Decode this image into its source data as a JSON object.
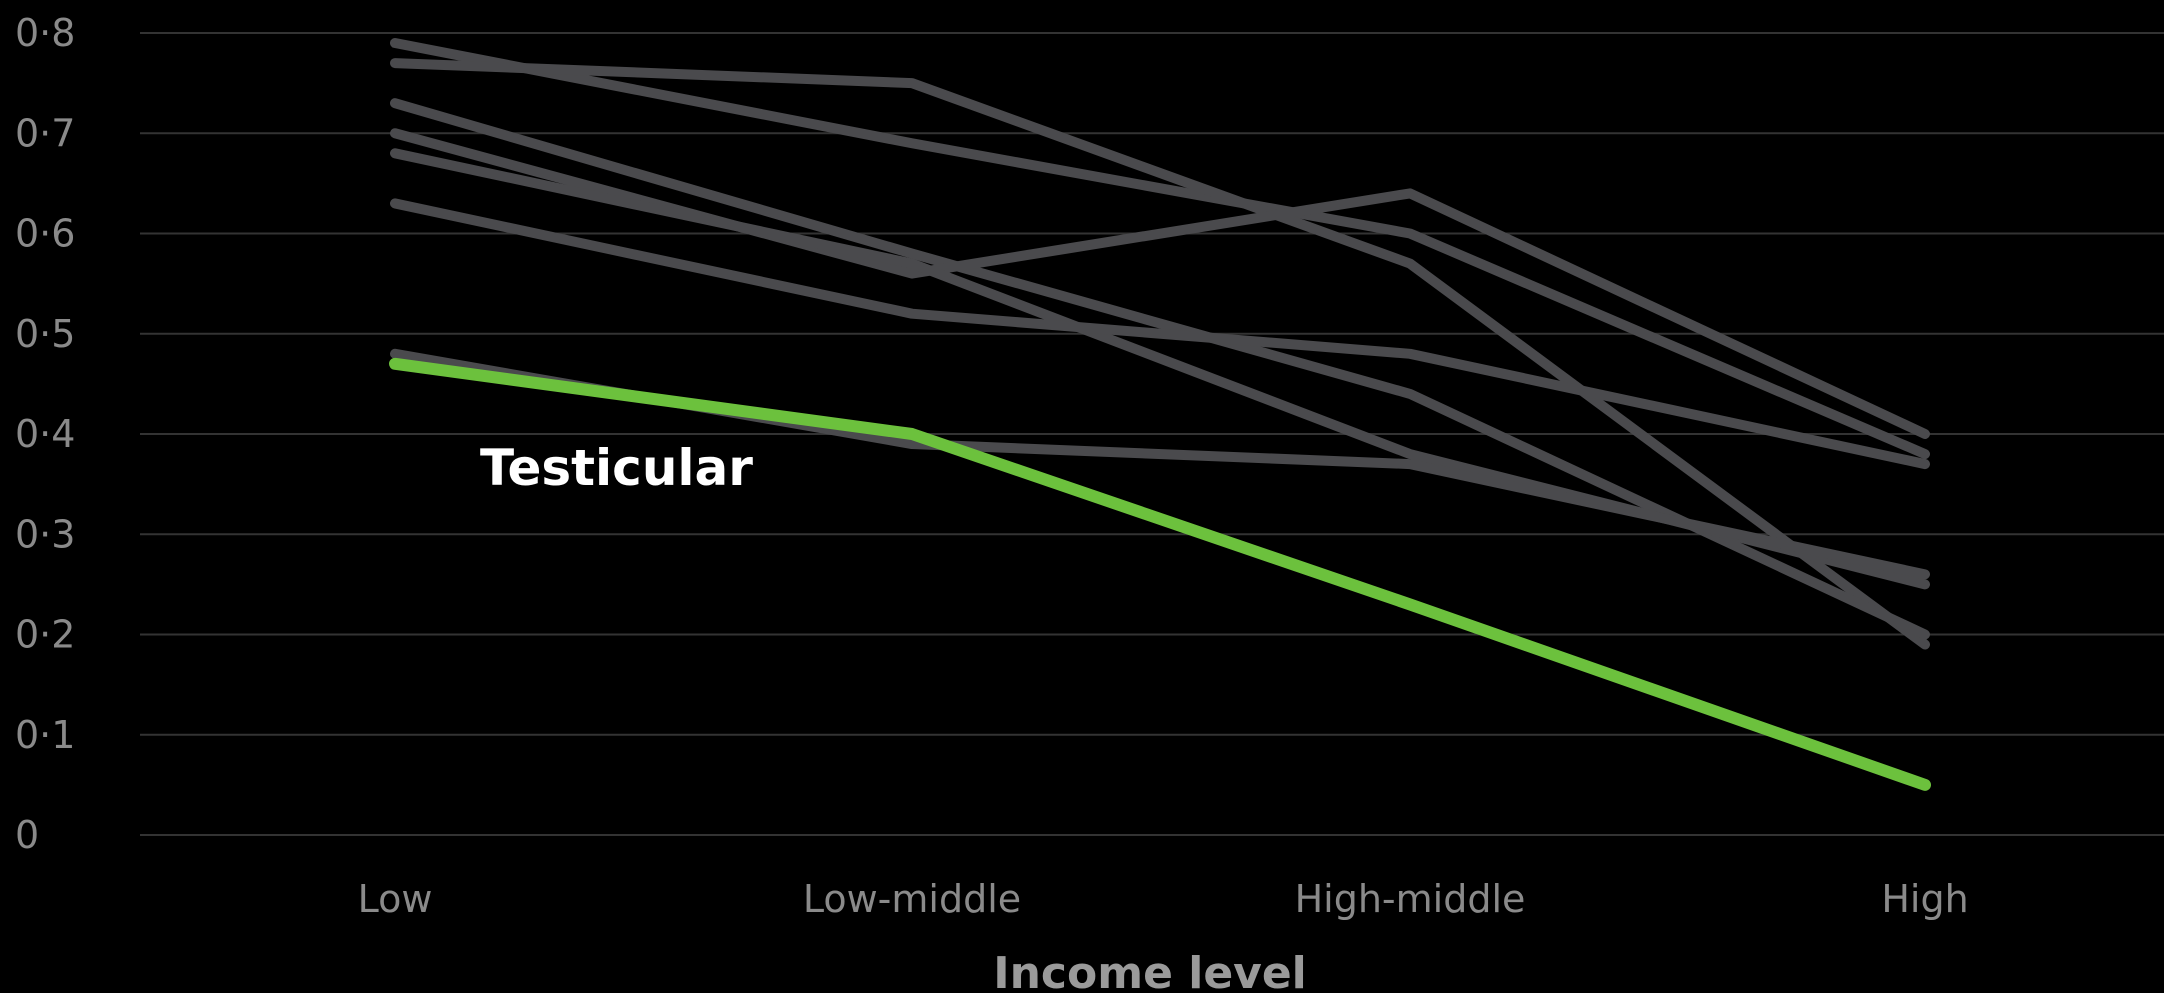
{
  "chart_data": {
    "type": "line",
    "xlabel": "Income level",
    "ylabel": "",
    "categories": [
      "Low",
      "Low-middle",
      "High-middle",
      "High"
    ],
    "ylim": [
      0,
      0.8
    ],
    "yticks": [
      0,
      0.1,
      0.2,
      0.3,
      0.4,
      0.5,
      0.6,
      0.7,
      0.8
    ],
    "ytick_labels": [
      "0",
      "0·1",
      "0·2",
      "0·3",
      "0·4",
      "0·5",
      "0·6",
      "0·7",
      "0·8"
    ],
    "grid": true,
    "series": [
      {
        "values": [
          0.79,
          0.69,
          0.6,
          0.38
        ],
        "highlight": false
      },
      {
        "values": [
          0.77,
          0.75,
          0.57,
          0.19
        ],
        "highlight": false
      },
      {
        "values": [
          0.73,
          0.58,
          0.44,
          0.2
        ],
        "highlight": false
      },
      {
        "values": [
          0.7,
          0.56,
          0.64,
          0.4
        ],
        "highlight": false
      },
      {
        "values": [
          0.68,
          0.57,
          0.38,
          0.25
        ],
        "highlight": false
      },
      {
        "values": [
          0.63,
          0.52,
          0.48,
          0.37
        ],
        "highlight": false
      },
      {
        "values": [
          0.48,
          0.39,
          0.37,
          0.26
        ],
        "highlight": false
      },
      {
        "name": "Testicular",
        "values": [
          0.47,
          0.4,
          0.23,
          0.05
        ],
        "highlight": true
      }
    ],
    "annotations": [
      {
        "text": "Testicular",
        "series": "Testicular"
      }
    ],
    "colors": {
      "background": "#000000",
      "highlight": "#6cc13d",
      "other": "#4a4a4d",
      "grid": "#333333",
      "ticks": "#8a8a8a",
      "axis_title": "#9a9a9a",
      "annotation": "#ffffff"
    }
  }
}
